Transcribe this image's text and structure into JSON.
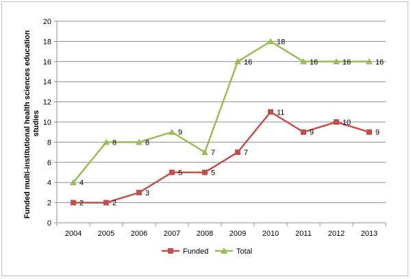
{
  "chart_data": {
    "type": "line",
    "categories": [
      "2004",
      "2005",
      "2006",
      "2007",
      "2008",
      "2009",
      "2010",
      "2011",
      "2012",
      "2013"
    ],
    "series": [
      {
        "name": "Funded",
        "values": [
          2,
          2,
          3,
          5,
          5,
          7,
          11,
          9,
          10,
          9
        ],
        "color": "#c0504d",
        "marker": "square"
      },
      {
        "name": "Total",
        "values": [
          4,
          8,
          8,
          9,
          7,
          16,
          18,
          16,
          16,
          16
        ],
        "color": "#9bbb59",
        "marker": "triangle"
      }
    ],
    "title": "",
    "xlabel": "",
    "ylabel_line1": "Funded multi-institutional health sciences education",
    "ylabel_line2": "studies",
    "ylim": [
      0,
      20
    ],
    "yticks": [
      "0",
      "2",
      "4",
      "6",
      "8",
      "10",
      "12",
      "14",
      "16",
      "18",
      "20"
    ],
    "grid": true,
    "legend": "bottom"
  }
}
